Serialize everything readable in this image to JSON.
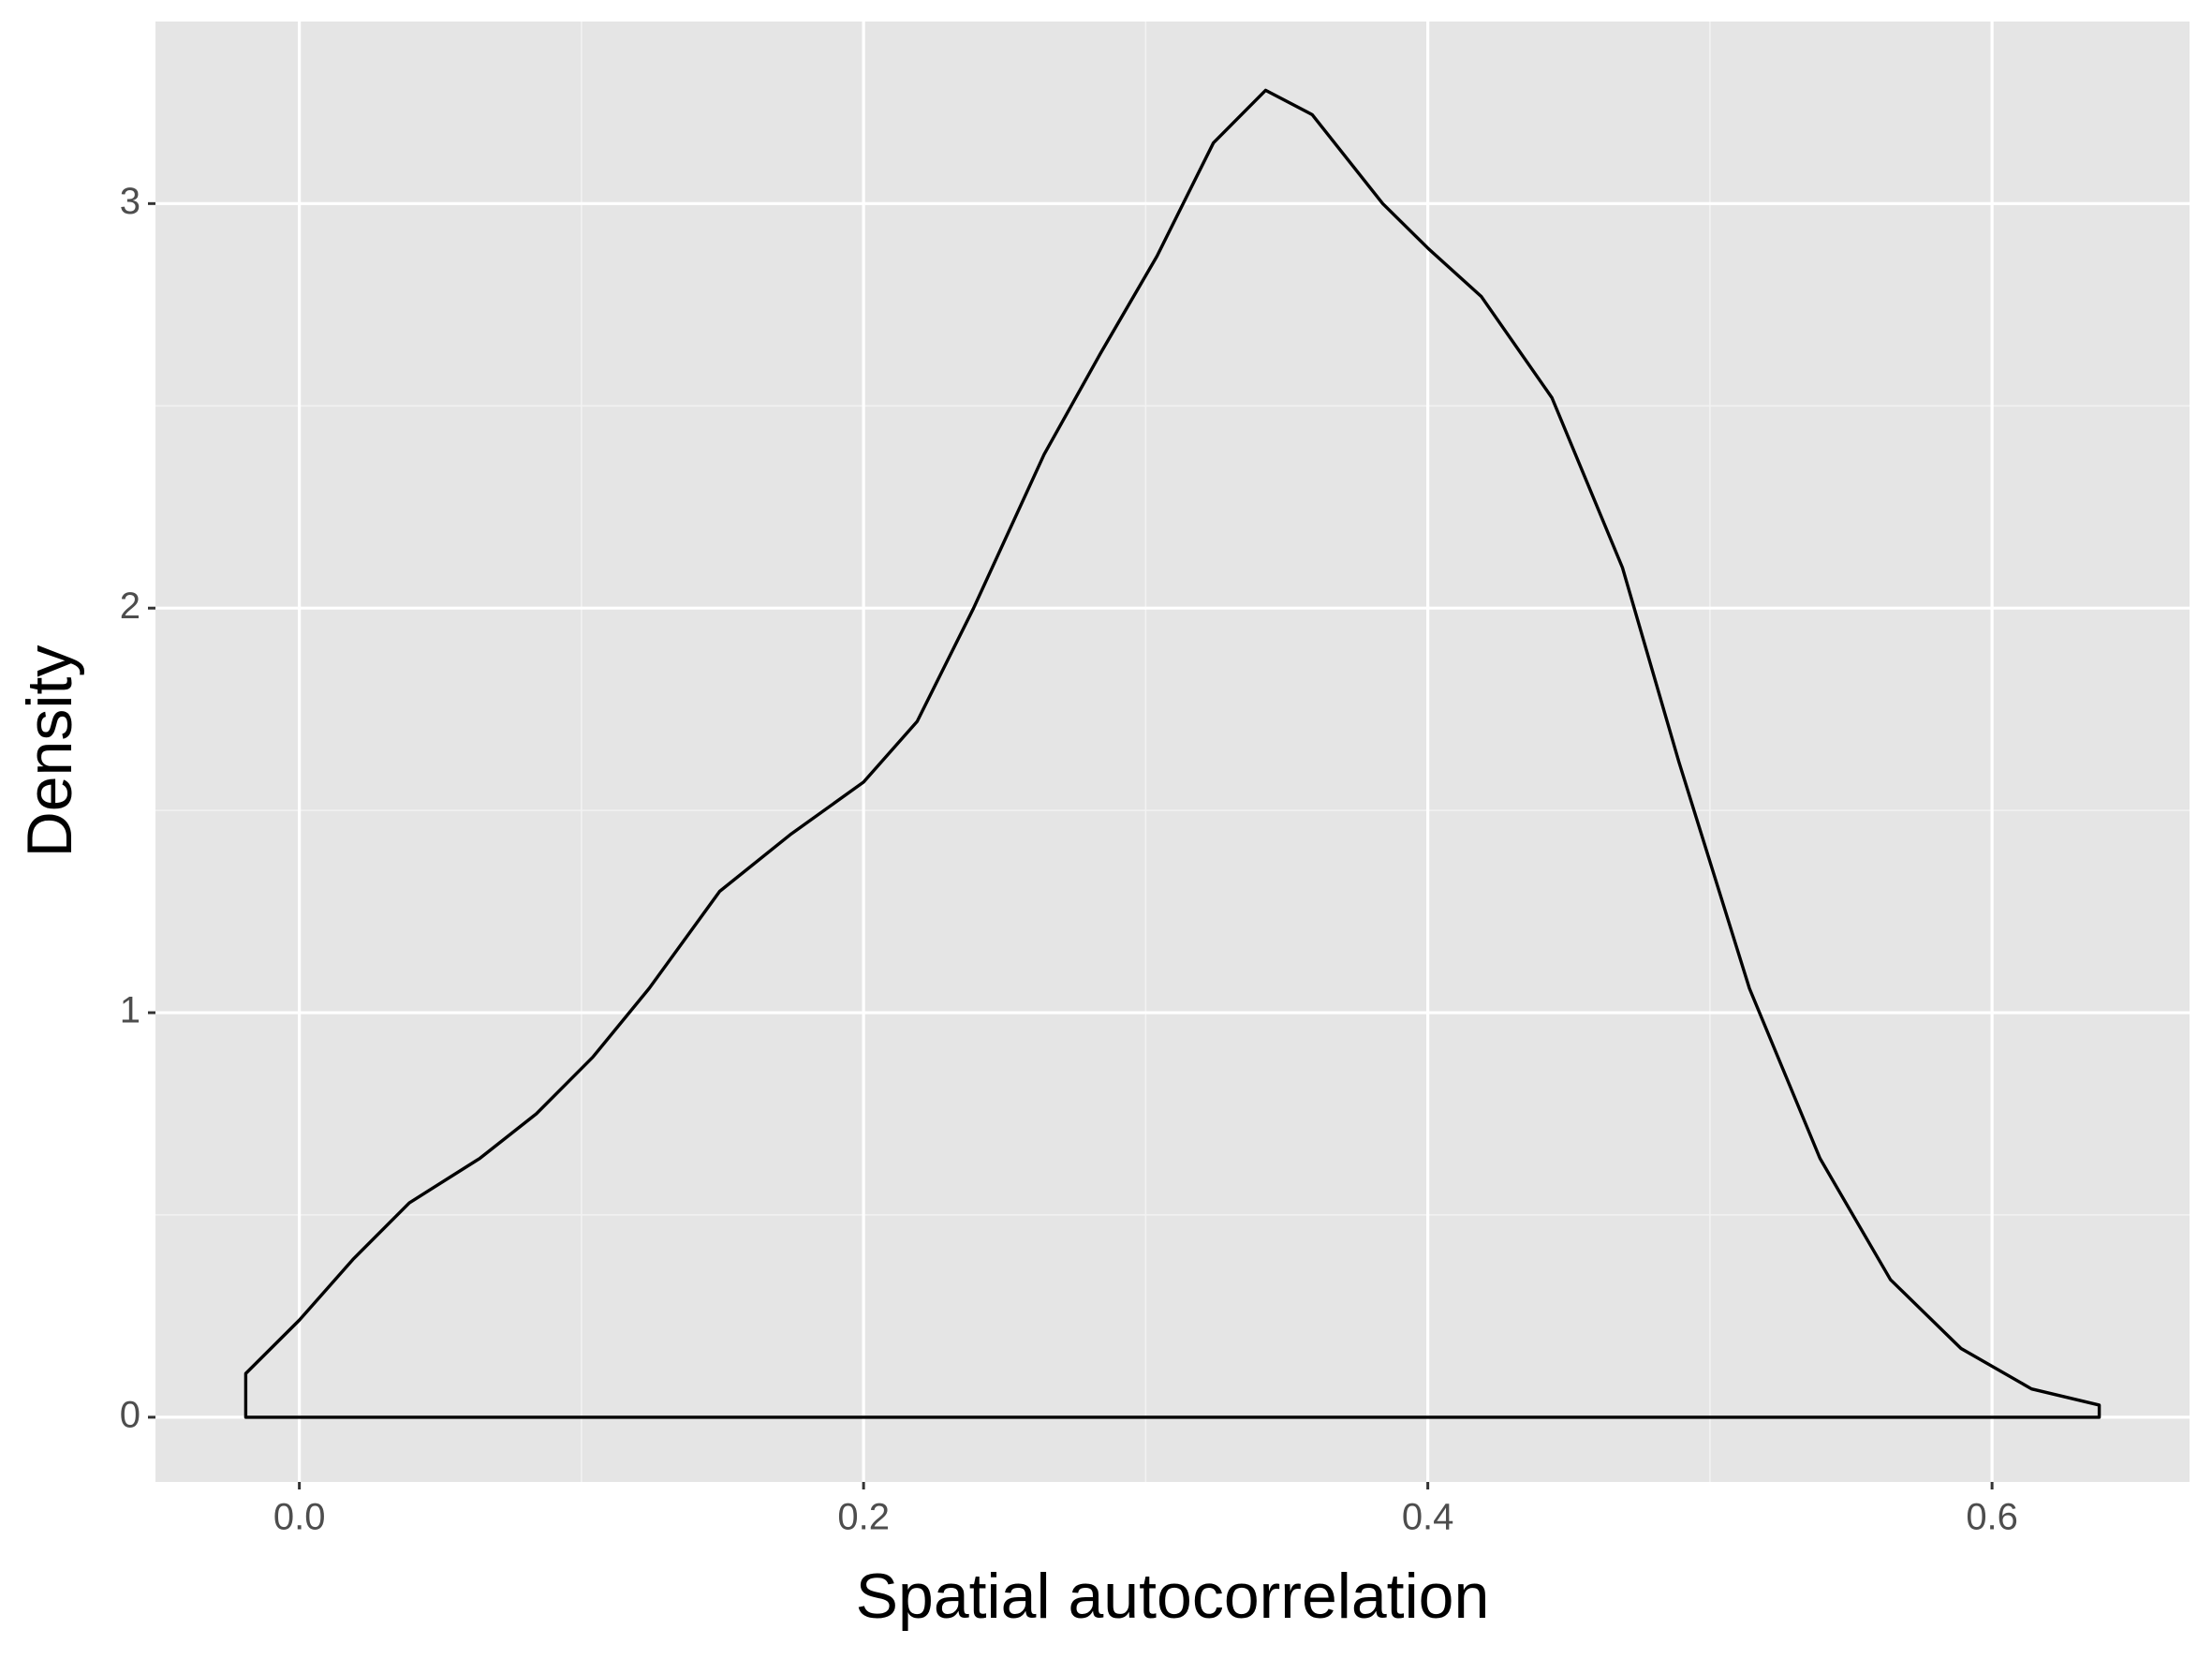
{
  "chart_data": {
    "type": "density",
    "x_label": "Spatial autocorrelation",
    "y_label": "Density",
    "x": [
      -0.019,
      -0.019,
      0.0,
      0.019,
      0.039,
      0.064,
      0.084,
      0.104,
      0.124,
      0.149,
      0.174,
      0.2,
      0.219,
      0.239,
      0.264,
      0.284,
      0.304,
      0.324,
      0.3425,
      0.359,
      0.384,
      0.4,
      0.419,
      0.444,
      0.469,
      0.489,
      0.514,
      0.539,
      0.564,
      0.589,
      0.614,
      0.638,
      0.638
    ],
    "values": [
      0,
      0.108,
      0.24,
      0.39,
      0.53,
      0.64,
      0.75,
      0.89,
      1.06,
      1.3,
      1.44,
      1.57,
      1.72,
      2.0,
      2.38,
      2.63,
      2.87,
      3.15,
      3.28,
      3.22,
      3.0,
      2.89,
      2.77,
      2.52,
      2.1,
      1.62,
      1.06,
      0.64,
      0.34,
      0.17,
      0.07,
      0.03,
      0
    ],
    "color": "#000000",
    "xlim": [
      -0.051,
      0.67
    ],
    "ylim": [
      -0.16,
      3.45
    ],
    "xticks": [
      {
        "value": 0,
        "label": "0.0"
      },
      0.2,
      0.4,
      0.6
    ],
    "yticks": [
      0,
      1,
      2,
      3
    ],
    "x_minor_grid": [
      0.1,
      0.3,
      0.5
    ],
    "y_minor_grid": [
      0.5,
      1.5,
      2.5
    ],
    "grid": true
  }
}
